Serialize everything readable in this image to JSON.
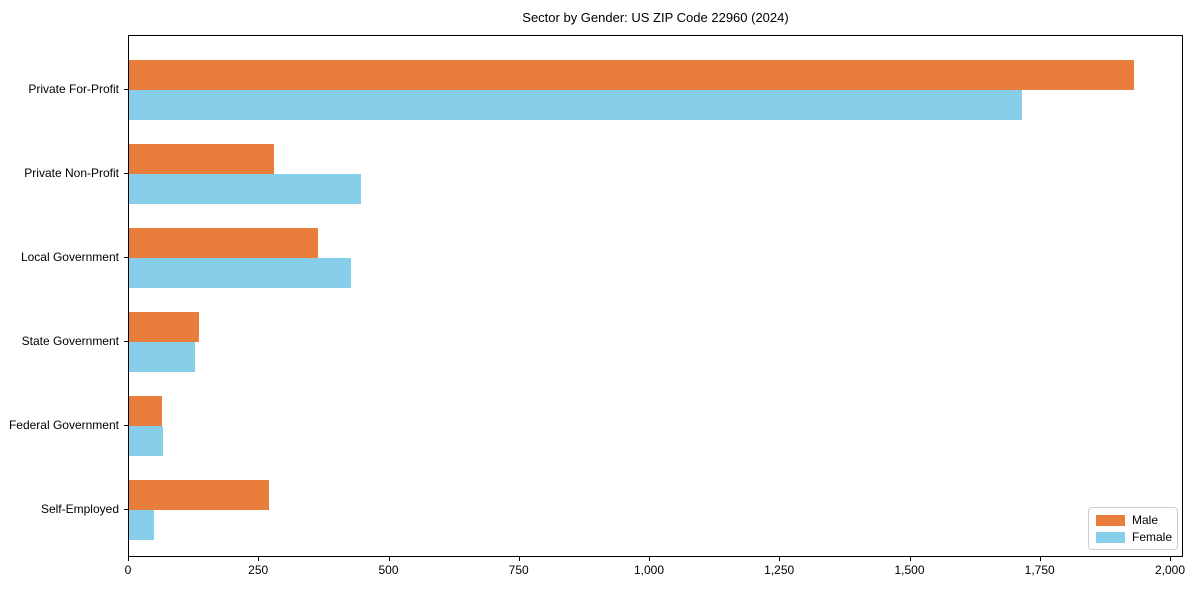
{
  "chart_data": {
    "type": "bar",
    "orientation": "horizontal",
    "title": "Sector by Gender: US ZIP Code 22960 (2024)",
    "categories": [
      "Private For-Profit",
      "Private Non-Profit",
      "Local Government",
      "State Government",
      "Federal Government",
      "Self-Employed"
    ],
    "series": [
      {
        "name": "Male",
        "color": "#e87d3c",
        "values": [
          1929,
          278,
          363,
          134,
          63,
          268
        ]
      },
      {
        "name": "Female",
        "color": "#87ceeb",
        "values": [
          1714,
          445,
          426,
          126,
          65,
          48
        ]
      }
    ],
    "xlabel": "",
    "ylabel": "",
    "xlim": [
      0,
      2025
    ],
    "x_tick_values": [
      0,
      250,
      500,
      750,
      1000,
      1250,
      1500,
      1750,
      2000
    ],
    "x_tick_labels": [
      "0",
      "250",
      "500",
      "750",
      "1,000",
      "1,250",
      "1,500",
      "1,750",
      "2,000"
    ],
    "grid": false,
    "legend_position": "lower right"
  }
}
